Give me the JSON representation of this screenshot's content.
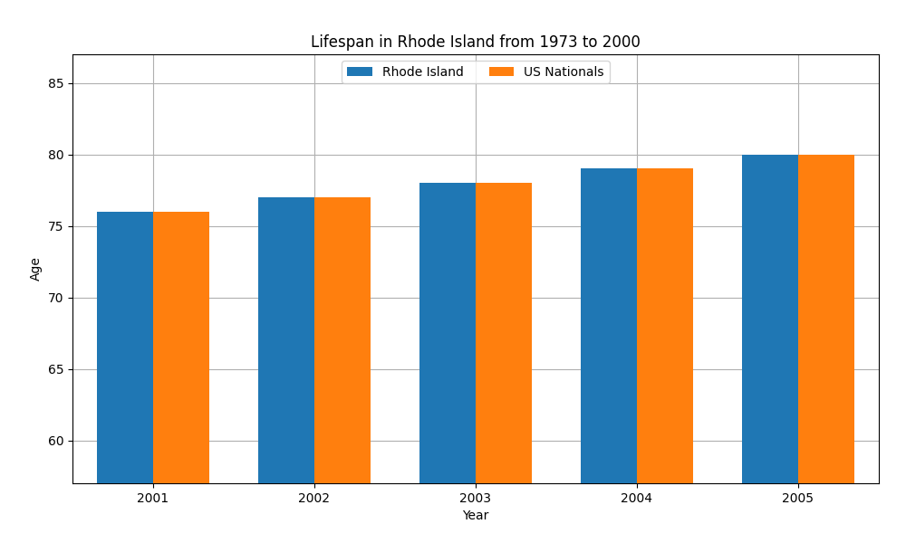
{
  "chart_data": {
    "type": "bar",
    "title": "Lifespan in Rhode Island from 1973 to 2000",
    "x_label": "Year",
    "y_label": "Age",
    "categories": [
      "2001",
      "2002",
      "2003",
      "2004",
      "2005"
    ],
    "series": [
      {
        "name": "Rhode Island",
        "values": [
          76.0,
          77.0,
          78.0,
          79.0,
          80.0
        ]
      },
      {
        "name": "US Nationals",
        "values": [
          76.0,
          77.0,
          78.0,
          79.0,
          80.0
        ]
      }
    ],
    "ylim": [
      57,
      87
    ],
    "yticks": [
      60,
      65,
      70,
      75,
      80,
      85
    ],
    "grid": true,
    "legend": "upper center"
  }
}
